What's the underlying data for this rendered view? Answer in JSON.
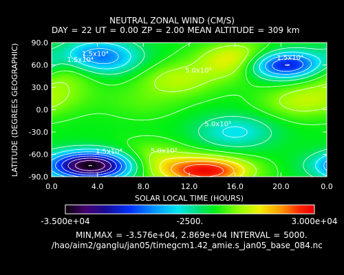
{
  "chart_data": {
    "type": "heatmap",
    "title": "NEUTRAL ZONAL WIND (CM/S)",
    "subtitle": "DAY =  22  UT =  0.00  ZP =   2.00  MEAN ALTITUDE = 309 km",
    "xlabel": "SOLAR LOCAL TIME (HOURS)",
    "ylabel": "LATITUDE (DEGREES GEOGRAPHIC)",
    "xlim": [
      0,
      24
    ],
    "ylim": [
      -90,
      90
    ],
    "x_ticks": [
      "0.0",
      "4.0",
      "8.0",
      "12.0",
      "16.0",
      "20.0",
      "0.0"
    ],
    "y_ticks": [
      "90.0",
      "60.0",
      "30.0",
      "0.0",
      "-30.0",
      "-60.0",
      "-90.0"
    ],
    "contour_interval": 5000,
    "min": -35760,
    "max": 28690,
    "colorbar": {
      "min_label": "-3.500e+04",
      "mid_label": "-2500.",
      "max_label": "3.000e+04",
      "min": -35000,
      "max": 30000
    },
    "stats_text": "MIN,MAX = -3.576e+04, 2.869e+04 INTERVAL =       5000.",
    "contour_labels": [
      "1.5x10⁴",
      "1.5x10⁴",
      "5.0x10³",
      "5.0x10³",
      "1.5x10⁴",
      "1.5x10⁴",
      "5.0x10³"
    ],
    "field": {
      "background": 4000,
      "features": [
        {
          "x": 3.5,
          "y": -75,
          "value": -36000
        },
        {
          "x": 4.0,
          "y": 70,
          "value": -16000
        },
        {
          "x": 20.2,
          "y": 60,
          "value": -26000
        },
        {
          "x": 13.5,
          "y": -82,
          "value": 28700
        },
        {
          "x": 16.5,
          "y": 65,
          "value": 21000
        },
        {
          "x": 1.0,
          "y": 55,
          "value": 14000
        },
        {
          "x": 11.0,
          "y": 40,
          "value": 12000
        },
        {
          "x": 21.5,
          "y": 10,
          "value": 11000
        },
        {
          "x": 8.5,
          "y": -68,
          "value": 13000
        },
        {
          "x": 16.0,
          "y": -30,
          "value": -6000
        },
        {
          "x": 8.0,
          "y": 10,
          "value": 7000
        },
        {
          "x": 0.5,
          "y": 20,
          "value": 8000
        }
      ]
    },
    "grid": false,
    "legend": "none"
  },
  "footer": {
    "filepath": "/hao/aim2/ganglu/jan05/timegcm1.42_amie.s_jan05_base_084.nc"
  }
}
